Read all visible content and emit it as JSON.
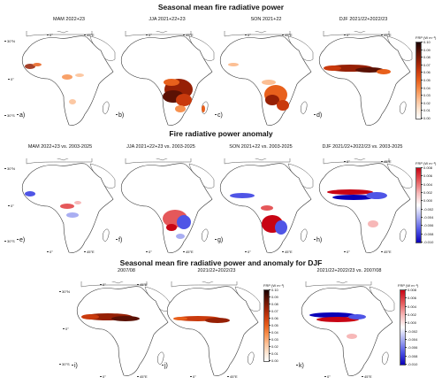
{
  "sections": {
    "s1": "Seasonal mean fire radiative power",
    "s2": "Fire radiative power anomaly",
    "s3": "Seasonal mean fire radiative power and anomaly for DJF"
  },
  "panels": {
    "a": {
      "title": "MAM 2022+23",
      "label": "a)"
    },
    "b": {
      "title": "JJA 2021+22+23",
      "label": "b)"
    },
    "c": {
      "title": "SON 2021+22",
      "label": "c)"
    },
    "d": {
      "title": "DJF 2021/22+2022/23",
      "label": "d)"
    },
    "e": {
      "title": "MAM 2022+23 vs. 2003-2025",
      "label": "e)"
    },
    "f": {
      "title": "JJA 2021+22+23 vs. 2003-2025",
      "label": "f)"
    },
    "g": {
      "title": "SON 2021+22 vs. 2003-2025",
      "label": "g)"
    },
    "h": {
      "title": "DJF 2021/22+2022/23 vs. 2003-2025",
      "label": "h)"
    },
    "i": {
      "title": "2007/08",
      "label": "i)"
    },
    "j": {
      "title": "2021/22+2022/23",
      "label": "j)"
    },
    "k": {
      "title": "2021/22+2022/23 vs. 2007/08",
      "label": "k)"
    }
  },
  "axes": {
    "lon0": "0°",
    "lon45": "45°E",
    "lat30n": "30°N",
    "lat0": "0°",
    "lat30s": "30°S"
  },
  "colorbars": {
    "frp_title": "FRP (W m⁻²)",
    "frp_ticks": [
      "0.10",
      "0.09",
      "0.08",
      "0.07",
      "0.06",
      "0.05",
      "0.04",
      "0.03",
      "0.02",
      "0.01",
      "0.00"
    ],
    "anom_title": "FRP (W m⁻²)",
    "anom_ticks": [
      "0.008",
      "0.006",
      "0.004",
      "0.002",
      "0.000",
      "-0.002",
      "-0.004",
      "-0.006",
      "-0.008",
      "-0.010"
    ]
  },
  "colors": {
    "frp_scale": [
      "#ffffff",
      "#fde4cf",
      "#fcbf94",
      "#f7914f",
      "#e8601c",
      "#c93a0d",
      "#962005",
      "#5a1104",
      "#1a0200"
    ],
    "anom_scale": [
      "#0a00b8",
      "#4f55e6",
      "#a9aef2",
      "#ffffff",
      "#f7b8b8",
      "#e5585a",
      "#c80414"
    ]
  }
}
